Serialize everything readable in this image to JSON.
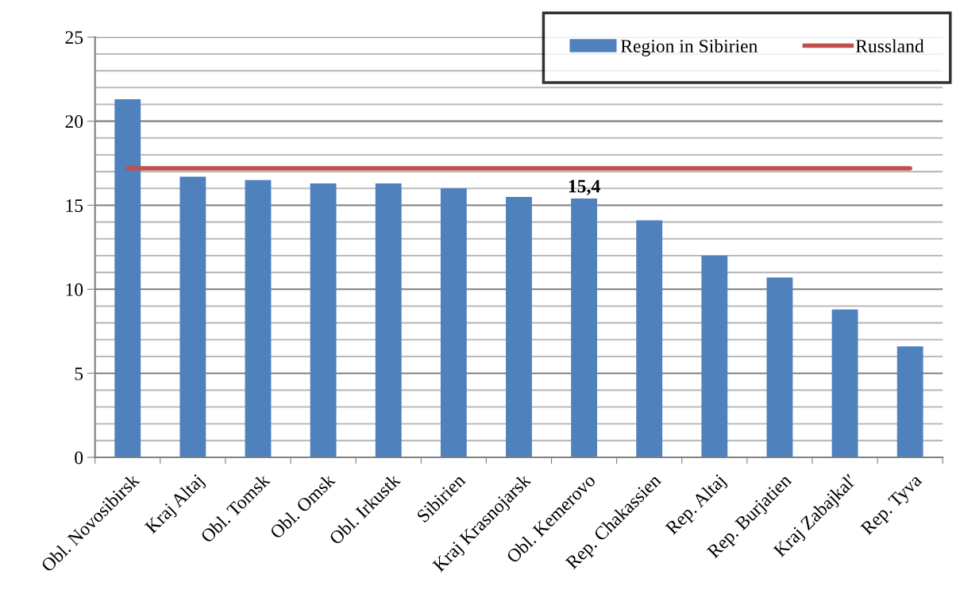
{
  "chart_data": {
    "type": "bar",
    "categories": [
      "Obl. Novosibirsk",
      "Kraj Altaj",
      "Obl. Tomsk",
      "Obl. Omsk",
      "Obl. Irkustk",
      "Sibirien",
      "Kraj Krasnojarsk",
      "Obl. Kemerovo",
      "Rep. Chakassien",
      "Rep. Altaj",
      "Rep. Burjatien",
      "Kraj Zabajkal′",
      "Rep. Tyva"
    ],
    "series": [
      {
        "name": "Region in Sibirien",
        "color": "#4f81bd",
        "values": [
          21.3,
          16.7,
          16.5,
          16.3,
          16.3,
          16.0,
          15.5,
          15.4,
          14.1,
          12.0,
          10.7,
          8.8,
          6.6
        ],
        "value_labels": [
          null,
          null,
          null,
          null,
          null,
          null,
          null,
          "15,4",
          null,
          null,
          null,
          null,
          null
        ]
      },
      {
        "name": "Russland",
        "type": "line",
        "color": "#c0504d",
        "values": [
          17.2,
          17.2,
          17.2,
          17.2,
          17.2,
          17.2,
          17.2,
          17.2,
          17.2,
          17.2,
          17.2,
          17.2,
          17.2
        ]
      }
    ],
    "ylim": [
      0,
      25
    ],
    "yticks": [
      0,
      {
        "value": 1,
        "label": null
      },
      {
        "value": 2,
        "label": null
      },
      {
        "value": 3,
        "label": null
      },
      {
        "value": 4,
        "label": null
      },
      5,
      {
        "value": 6,
        "label": null
      },
      {
        "value": 7,
        "label": null
      },
      {
        "value": 8,
        "label": null
      },
      {
        "value": 9,
        "label": null
      },
      10,
      {
        "value": 11,
        "label": null
      },
      {
        "value": 12,
        "label": null
      },
      {
        "value": 13,
        "label": null
      },
      {
        "value": 14,
        "label": null
      },
      15,
      {
        "value": 16,
        "label": null
      },
      {
        "value": 17,
        "label": null
      },
      {
        "value": 18,
        "label": null
      },
      {
        "value": 19,
        "label": null
      },
      20,
      {
        "value": 21,
        "label": null
      },
      {
        "value": 22,
        "label": null
      },
      {
        "value": 23,
        "label": null
      },
      {
        "value": 24,
        "label": null
      },
      25
    ],
    "grid": "y",
    "legend": "top right"
  }
}
